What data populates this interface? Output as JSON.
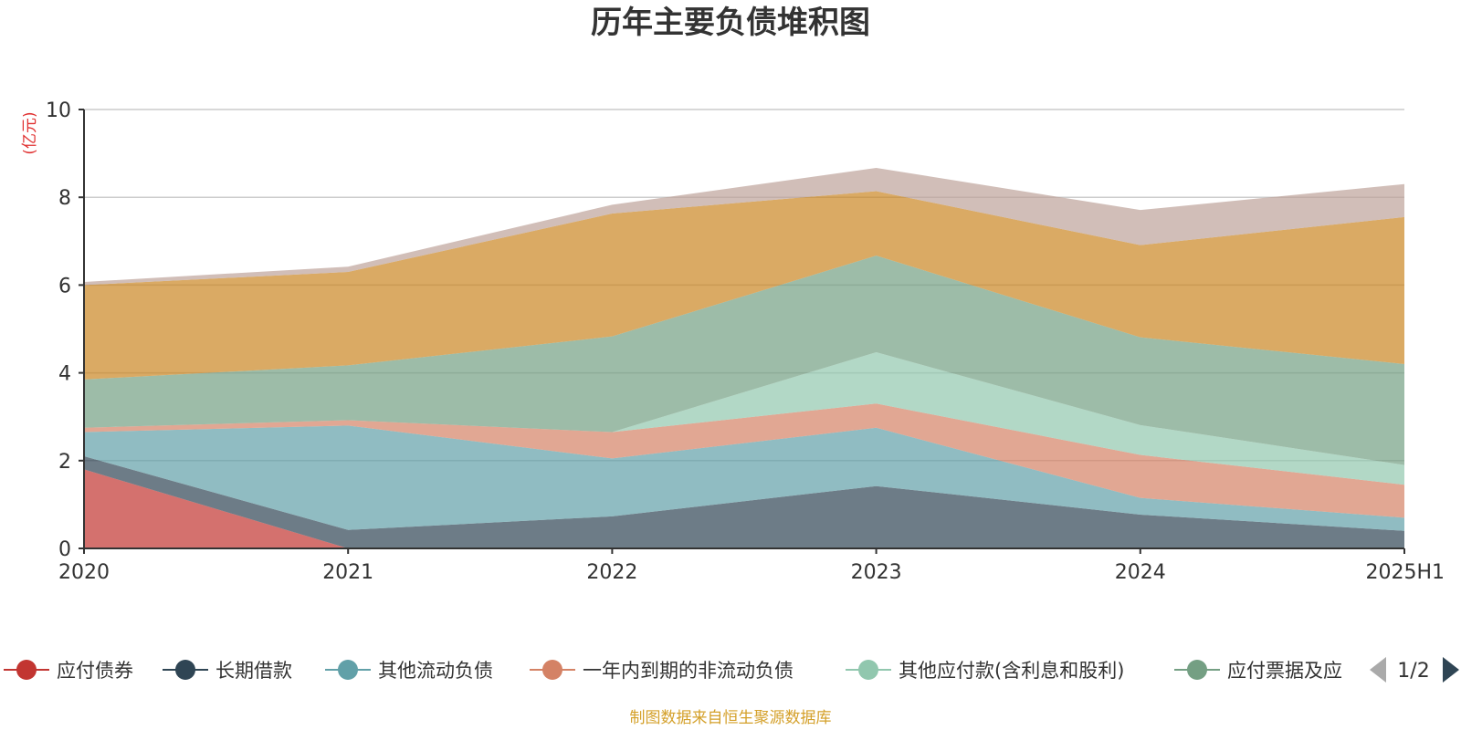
{
  "chart_data": {
    "type": "area",
    "stacked": true,
    "title": "历年主要负债堆积图",
    "unit_label": "(亿元)",
    "x": [
      "2020",
      "2021",
      "2022",
      "2023",
      "2024",
      "2025H1"
    ],
    "ylim": [
      0,
      10
    ],
    "yticks": [
      "0",
      "2",
      "4",
      "6",
      "8",
      "10"
    ],
    "grid": true,
    "series": [
      {
        "name": "应付债券",
        "color": "#c23531",
        "values": [
          1.8,
          0.0,
          0.0,
          0.0,
          0.0,
          0.0
        ]
      },
      {
        "name": "长期借款",
        "color": "#2f4554",
        "values": [
          0.3,
          0.42,
          0.73,
          1.42,
          0.77,
          0.4
        ]
      },
      {
        "name": "其他流动负债",
        "color": "#61a0a8",
        "values": [
          0.55,
          2.38,
          1.32,
          1.33,
          0.38,
          0.3
        ]
      },
      {
        "name": "一年内到期的非流动负债",
        "color": "#d48265",
        "values": [
          0.1,
          0.12,
          0.6,
          0.55,
          0.98,
          0.75
        ]
      },
      {
        "name": "其他应付款(含利息和股利)",
        "color": "#91c7ae",
        "values": [
          0.0,
          0.0,
          0.0,
          1.17,
          0.68,
          0.45
        ]
      },
      {
        "name": "应付票据及应付账款",
        "color": "#749f83",
        "values": [
          1.1,
          1.25,
          2.18,
          2.2,
          2.0,
          2.3
        ]
      },
      {
        "name": "",
        "color": "#ca8622",
        "values": [
          2.15,
          2.13,
          2.8,
          1.47,
          2.1,
          3.35
        ]
      },
      {
        "name": "",
        "color": "#bda29a",
        "values": [
          0.07,
          0.12,
          0.2,
          0.53,
          0.8,
          0.75
        ]
      }
    ],
    "legend": {
      "placement": "bottom",
      "visible_items": [
        "应付债券",
        "长期借款",
        "其他流动负债",
        "一年内到期的非流动负债",
        "其他应付款(含利息和股利)",
        "应付票据及应"
      ],
      "page": "1/2"
    },
    "source_note": "制图数据来自恒生聚源数据库"
  }
}
